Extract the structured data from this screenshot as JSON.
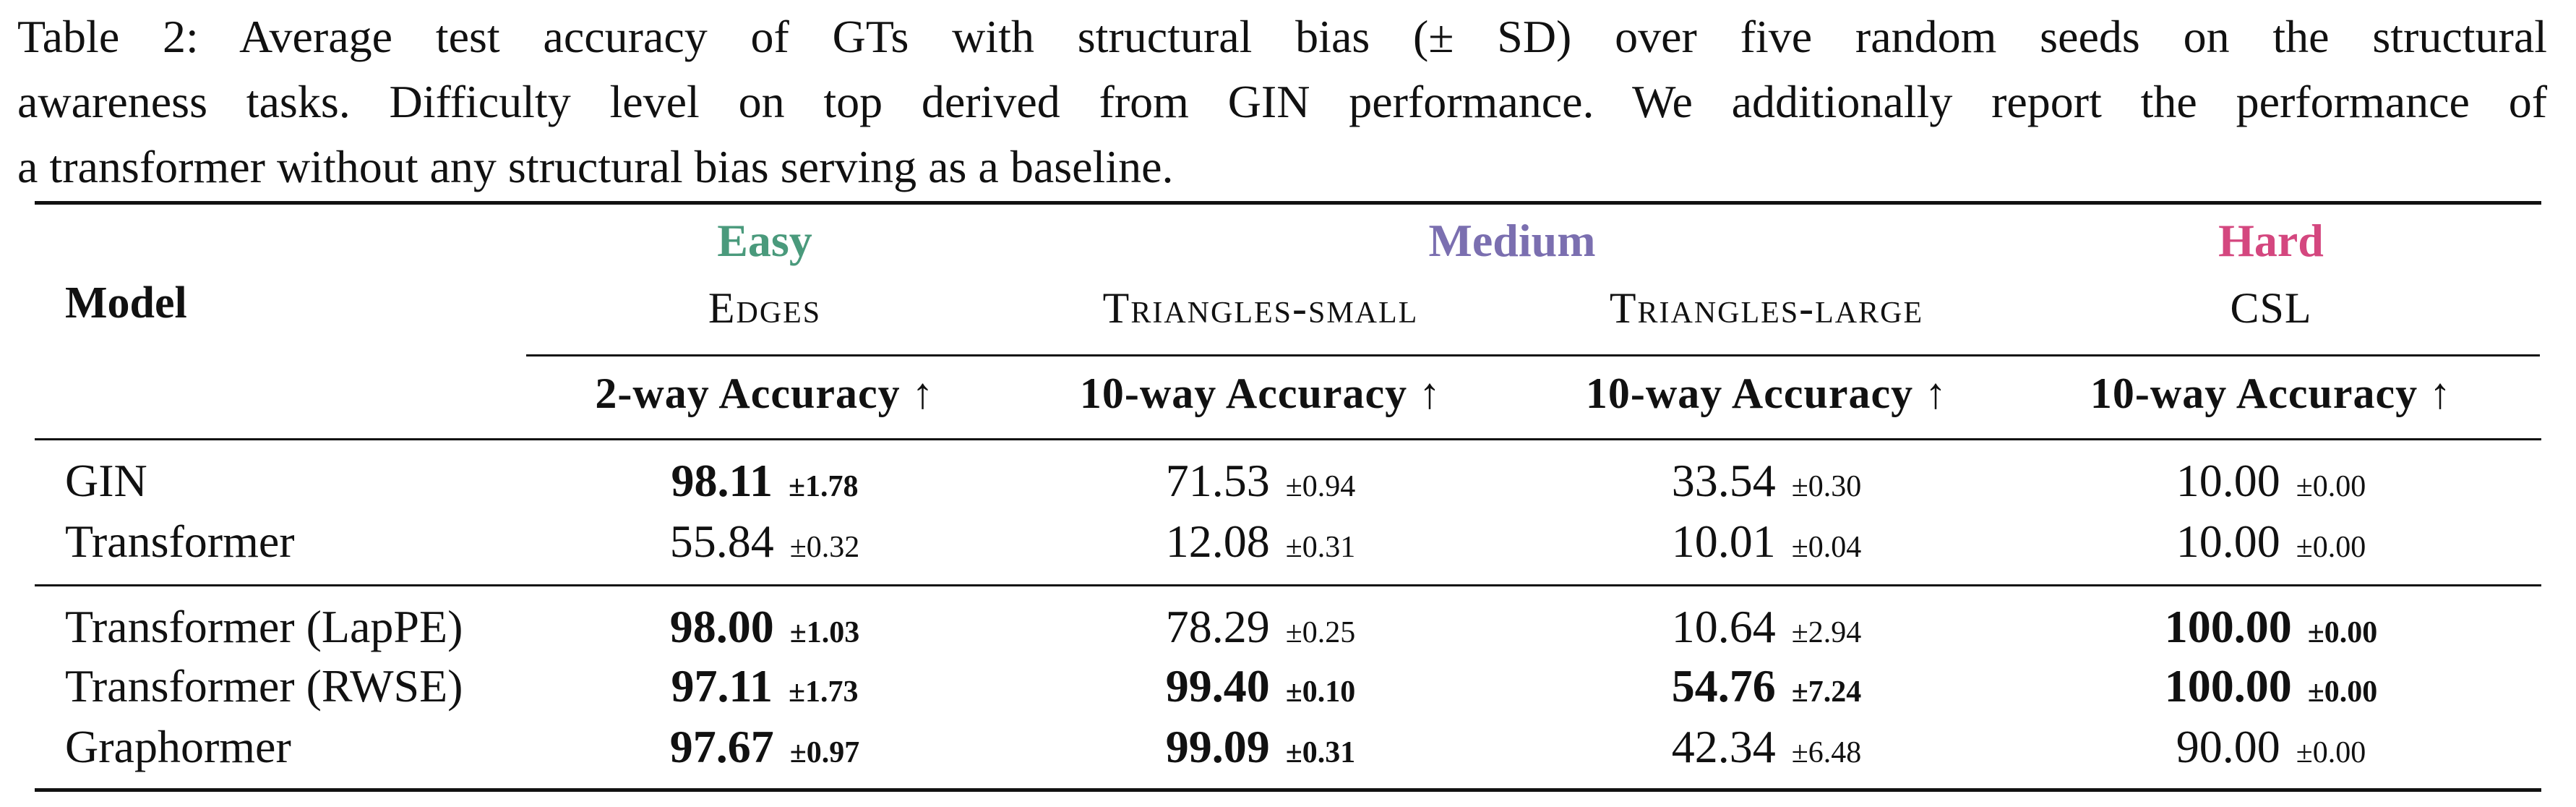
{
  "caption": {
    "line1": "Table 2: Average test accuracy of GTs with structural bias (± SD) over five random seeds on the structural",
    "line2": "awareness tasks. Difficulty level on top derived from GIN performance. We additionally report the performance of",
    "line3": "a transformer without any structural bias serving as a baseline."
  },
  "header": {
    "model_label": "Model",
    "difficulty": {
      "easy": "Easy",
      "medium": "Medium",
      "hard": "Hard"
    },
    "tasks": [
      "Edges",
      "Triangles-small",
      "Triangles-large",
      "CSL"
    ],
    "metrics": [
      "2-way Accuracy ↑",
      "10-way Accuracy ↑",
      "10-way Accuracy ↑",
      "10-way Accuracy ↑"
    ]
  },
  "colors": {
    "easy": "#4a9a7c",
    "medium": "#7b6fb0",
    "hard": "#d4477f"
  },
  "rows": [
    {
      "model": "GIN",
      "cells": [
        {
          "v": "98.11",
          "sd": "±1.78",
          "bold": true
        },
        {
          "v": "71.53",
          "sd": "±0.94",
          "bold": false
        },
        {
          "v": "33.54",
          "sd": "±0.30",
          "bold": false
        },
        {
          "v": "10.00",
          "sd": "±0.00",
          "bold": false
        }
      ]
    },
    {
      "model": "Transformer",
      "cells": [
        {
          "v": "55.84",
          "sd": "±0.32",
          "bold": false
        },
        {
          "v": "12.08",
          "sd": "±0.31",
          "bold": false
        },
        {
          "v": "10.01",
          "sd": "±0.04",
          "bold": false
        },
        {
          "v": "10.00",
          "sd": "±0.00",
          "bold": false
        }
      ]
    },
    {
      "model": "Transformer (LapPE)",
      "cells": [
        {
          "v": "98.00",
          "sd": "±1.03",
          "bold": true
        },
        {
          "v": "78.29",
          "sd": "±0.25",
          "bold": false
        },
        {
          "v": "10.64",
          "sd": "±2.94",
          "bold": false
        },
        {
          "v": "100.00",
          "sd": "±0.00",
          "bold": true
        }
      ]
    },
    {
      "model": "Transformer (RWSE)",
      "cells": [
        {
          "v": "97.11",
          "sd": "±1.73",
          "bold": true
        },
        {
          "v": "99.40",
          "sd": "±0.10",
          "bold": true
        },
        {
          "v": "54.76",
          "sd": "±7.24",
          "bold": true
        },
        {
          "v": "100.00",
          "sd": "±0.00",
          "bold": true
        }
      ]
    },
    {
      "model": "Graphormer",
      "cells": [
        {
          "v": "97.67",
          "sd": "±0.97",
          "bold": true
        },
        {
          "v": "99.09",
          "sd": "±0.31",
          "bold": true
        },
        {
          "v": "42.34",
          "sd": "±6.48",
          "bold": false
        },
        {
          "v": "90.00",
          "sd": "±0.00",
          "bold": false
        }
      ]
    }
  ]
}
